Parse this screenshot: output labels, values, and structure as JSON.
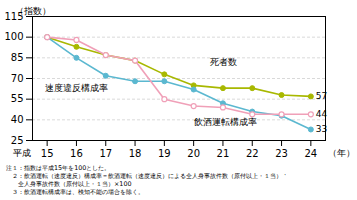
{
  "chart_data": {
    "type": "line",
    "ylabel": "（指数）",
    "xlabel": "（年）",
    "annotations": [
      "平成"
    ],
    "notes": [
      "注１：指数は平成15年を100とした。",
      "　２：飲酒運転（速度違反）構成率＝飲酒運転（速度違反）による全人身事故件数（原付以上・１当）＇",
      "　　全人身事故件数（原付以上・１当）×100",
      "　３：飲酒運転構成率は、検知不能の場合を除く。"
    ],
    "x": [
      15,
      16,
      17,
      18,
      19,
      20,
      21,
      22,
      23,
      24
    ],
    "xlim": [
      14.5,
      24.5
    ],
    "xticks": [
      15,
      16,
      17,
      18,
      19,
      20,
      21,
      22,
      23,
      24
    ],
    "ylim": [
      25,
      115
    ],
    "yticks": [
      25,
      40,
      55,
      70,
      85,
      100,
      115
    ],
    "grid": true,
    "series": [
      {
        "name": "死者数",
        "color": "#a8b800",
        "marker": "circle",
        "values": [
          100,
          93,
          87,
          83,
          73,
          65,
          63,
          63,
          58,
          57
        ],
        "value_labels": [
          null,
          null,
          null,
          null,
          null,
          null,
          null,
          null,
          null,
          "57"
        ]
      },
      {
        "name": "速度違反構成率",
        "color": "#5bb8d0",
        "marker": "circle",
        "values": [
          100,
          85,
          72,
          68,
          68,
          62,
          52,
          46,
          43,
          33
        ],
        "value_labels": [
          null,
          null,
          null,
          null,
          null,
          null,
          null,
          null,
          null,
          "33"
        ]
      },
      {
        "name": "飲酒運転構成率",
        "color": "#f0a0b8",
        "marker": "open_circle",
        "values": [
          100,
          98,
          87,
          83,
          55,
          50,
          49,
          44,
          44,
          44
        ],
        "value_labels": [
          null,
          null,
          null,
          null,
          null,
          null,
          null,
          null,
          null,
          "44"
        ]
      }
    ]
  }
}
